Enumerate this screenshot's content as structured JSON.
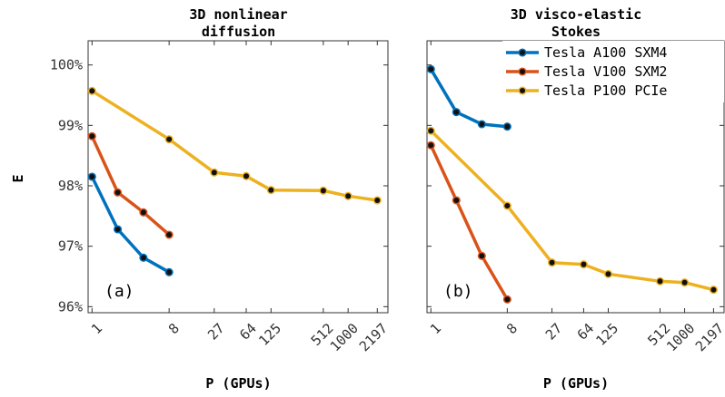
{
  "chart_data": [
    {
      "type": "line",
      "title": [
        "3D nonlinear",
        "diffusion"
      ],
      "xlabel": "P (GPUs)",
      "ylabel": "E",
      "panel_label": "(a)",
      "xscale": "log",
      "xlim": [
        0.9,
        3000
      ],
      "ylim": [
        95.9,
        100.4
      ],
      "xticks": [
        1,
        8,
        27,
        64,
        125,
        512,
        1000,
        2197
      ],
      "xtick_labels": [
        "1",
        "8",
        "27",
        "64",
        "125",
        "512",
        "1000",
        "2197"
      ],
      "yticks": [
        96,
        97,
        98,
        99,
        100
      ],
      "ytick_labels": [
        "96%",
        "97%",
        "98%",
        "99%",
        "100%"
      ],
      "grid": false,
      "series": [
        {
          "name": "Tesla A100 SXM4",
          "color": "#0072BD",
          "x": [
            1,
            2,
            4,
            8
          ],
          "y": [
            98.15,
            97.28,
            96.81,
            96.57
          ]
        },
        {
          "name": "Tesla V100 SXM2",
          "color": "#D95319",
          "x": [
            1,
            2,
            4,
            8
          ],
          "y": [
            98.82,
            97.89,
            97.56,
            97.19
          ]
        },
        {
          "name": "Tesla P100 PCIe",
          "color": "#EDB120",
          "x": [
            1,
            8,
            27,
            64,
            125,
            512,
            1000,
            2197
          ],
          "y": [
            99.57,
            98.77,
            98.22,
            98.16,
            97.93,
            97.92,
            97.83,
            97.76
          ]
        }
      ]
    },
    {
      "type": "line",
      "title": [
        "3D visco-elastic",
        "Stokes"
      ],
      "xlabel": "P (GPUs)",
      "panel_label": "(b)",
      "xscale": "log",
      "xlim": [
        0.9,
        3000
      ],
      "ylim": [
        95.9,
        100.4
      ],
      "xticks": [
        1,
        8,
        27,
        64,
        125,
        512,
        1000,
        2197
      ],
      "xtick_labels": [
        "1",
        "8",
        "27",
        "64",
        "125",
        "512",
        "1000",
        "2197"
      ],
      "yticks": [
        96,
        97,
        98,
        99,
        100
      ],
      "grid": false,
      "legend": "top-right",
      "series": [
        {
          "name": "Tesla A100 SXM4",
          "color": "#0072BD",
          "x": [
            1,
            2,
            4,
            8
          ],
          "y": [
            99.93,
            99.22,
            99.02,
            98.98
          ]
        },
        {
          "name": "Tesla V100 SXM2",
          "color": "#D95319",
          "x": [
            1,
            2,
            4,
            8
          ],
          "y": [
            98.67,
            97.76,
            96.84,
            96.12
          ]
        },
        {
          "name": "Tesla P100 PCIe",
          "color": "#EDB120",
          "x": [
            1,
            8,
            27,
            64,
            125,
            512,
            1000,
            2197
          ],
          "y": [
            98.91,
            97.67,
            96.73,
            96.7,
            96.54,
            96.42,
            96.4,
            96.28
          ]
        }
      ]
    }
  ]
}
